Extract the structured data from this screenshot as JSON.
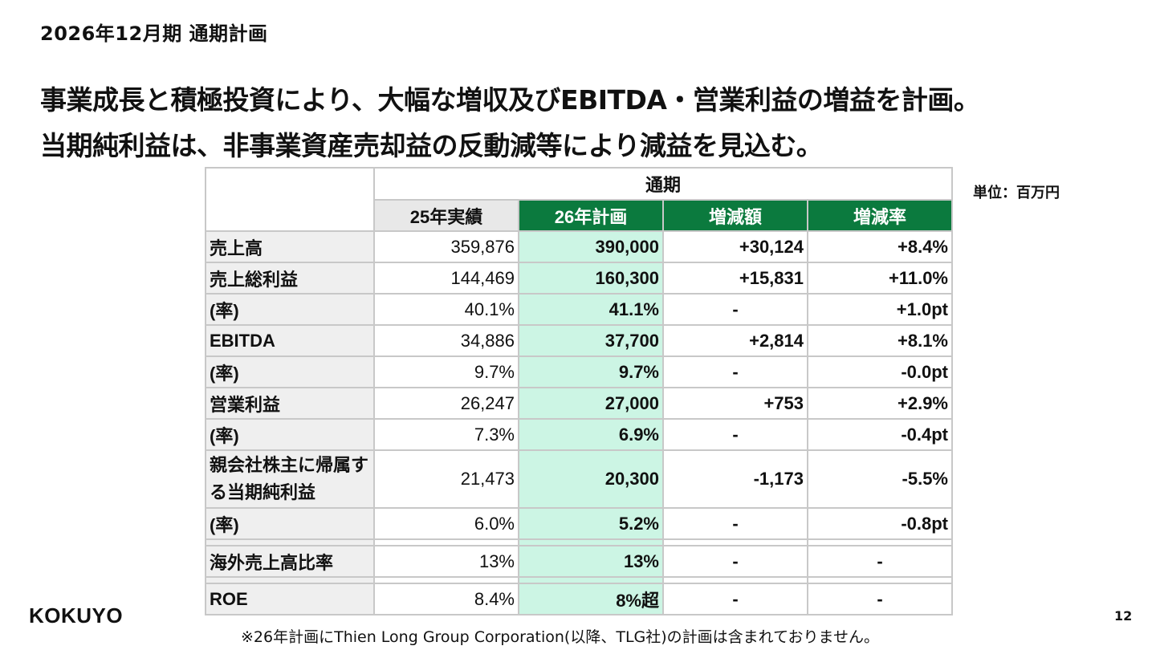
{
  "section_title": "2026年12月期 通期計画",
  "headline": {
    "line1": "事業成長と積極投資により、大幅な増収及びEBITDA・営業利益の増益を計画。",
    "line2": "当期純利益は、非事業資産売却益の反動減等により減益を見込む。"
  },
  "unit_label": "単位：百万円",
  "table": {
    "period_header": "通期",
    "columns": [
      "25年実績",
      "26年計画",
      "増減額",
      "増減率"
    ],
    "rows": [
      {
        "label": "売上高",
        "prev": "359,876",
        "plan": "390,000",
        "change": "+30,124",
        "rate": "+8.4%"
      },
      {
        "label": "売上総利益",
        "prev": "144,469",
        "plan": "160,300",
        "change": "+15,831",
        "rate": "+11.0%"
      },
      {
        "label": "(率)",
        "prev": "40.1%",
        "plan": "41.1%",
        "change": "-",
        "rate": "+1.0pt"
      },
      {
        "label": "EBITDA",
        "prev": "34,886",
        "plan": "37,700",
        "change": "+2,814",
        "rate": "+8.1%"
      },
      {
        "label": "(率)",
        "prev": "9.7%",
        "plan": "9.7%",
        "change": "-",
        "rate": "-0.0pt"
      },
      {
        "label": "営業利益",
        "prev": "26,247",
        "plan": "27,000",
        "change": "+753",
        "rate": "+2.9%"
      },
      {
        "label": "(率)",
        "prev": "7.3%",
        "plan": "6.9%",
        "change": "-",
        "rate": "-0.4pt"
      },
      {
        "label": "親会社株主に帰属する当期純利益",
        "prev": "21,473",
        "plan": "20,300",
        "change": "-1,173",
        "rate": "-5.5%"
      },
      {
        "label": "(率)",
        "prev": "6.0%",
        "plan": "5.2%",
        "change": "-",
        "rate": "-0.8pt"
      },
      {
        "label": "海外売上高比率",
        "prev": "13%",
        "plan": "13%",
        "change": "-",
        "rate": "-"
      },
      {
        "label": "ROE",
        "prev": "8.4%",
        "plan": "8%超",
        "change": "-",
        "rate": "-"
      }
    ]
  },
  "logo": "KOKUYO",
  "footnote": "※26年計画にThien Long Group Corporation(以降、TLG社)の計画は含まれておりません。",
  "page_number": "12",
  "colors": {
    "header_green": "#0b7a3e",
    "plan_highlight": "#ccf5e4",
    "label_bg": "#efefef"
  }
}
